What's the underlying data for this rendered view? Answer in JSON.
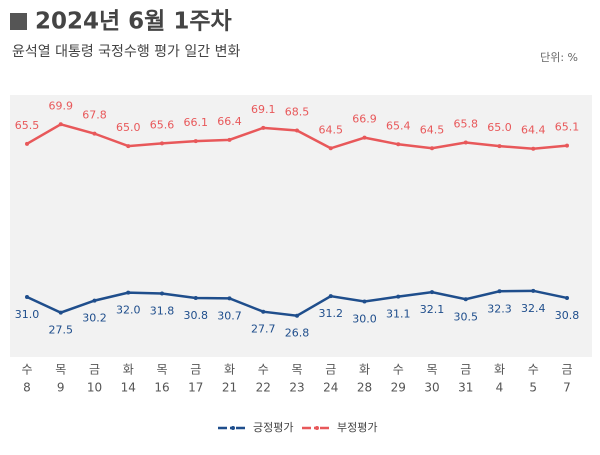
{
  "chart_data": {
    "type": "line",
    "title": "2024년 6월 1주차",
    "subtitle": "윤석열 대통령 국정수행 평가 일간 변화",
    "unit": "단위: %",
    "categories": [
      [
        "수",
        "8"
      ],
      [
        "목",
        "9"
      ],
      [
        "금",
        "10"
      ],
      [
        "화",
        "14"
      ],
      [
        "목",
        "16"
      ],
      [
        "금",
        "17"
      ],
      [
        "화",
        "21"
      ],
      [
        "수",
        "22"
      ],
      [
        "목",
        "23"
      ],
      [
        "금",
        "24"
      ],
      [
        "화",
        "28"
      ],
      [
        "수",
        "29"
      ],
      [
        "목",
        "30"
      ],
      [
        "금",
        "31"
      ],
      [
        "화",
        "4"
      ],
      [
        "수",
        "5"
      ],
      [
        "금",
        "7"
      ]
    ],
    "ylim": [
      17.5,
      76.5
    ],
    "series": [
      {
        "name": "긍정평가",
        "color": "#1f4e8c",
        "label_side": "below",
        "values": [
          31.0,
          27.5,
          30.2,
          32.0,
          31.8,
          30.8,
          30.7,
          27.7,
          26.8,
          31.2,
          30.0,
          31.1,
          32.1,
          30.5,
          32.3,
          32.4,
          30.8
        ],
        "value_labels": [
          "31.0",
          "27.5",
          "30.2",
          "32.0",
          "31.8",
          "30.8",
          "30.7",
          "27.7",
          "26.8",
          "31.2",
          "30.0",
          "31.1",
          "32.1",
          "30.5",
          "32.3",
          "32.4",
          "30.8"
        ]
      },
      {
        "name": "부정평가",
        "color": "#e8585a",
        "label_side": "above",
        "values": [
          65.5,
          69.9,
          67.8,
          65.0,
          65.6,
          66.1,
          66.4,
          69.1,
          68.5,
          64.5,
          66.9,
          65.4,
          64.5,
          65.8,
          65.0,
          64.4,
          65.1
        ],
        "value_labels": [
          "65.5",
          "69.9",
          "67.8",
          "65.0",
          "65.6",
          "66.1",
          "66.4",
          "69.1",
          "68.5",
          "64.5",
          "66.9",
          "65.4",
          "64.5",
          "65.8",
          "65.0",
          "64.4",
          "65.1"
        ]
      }
    ]
  }
}
